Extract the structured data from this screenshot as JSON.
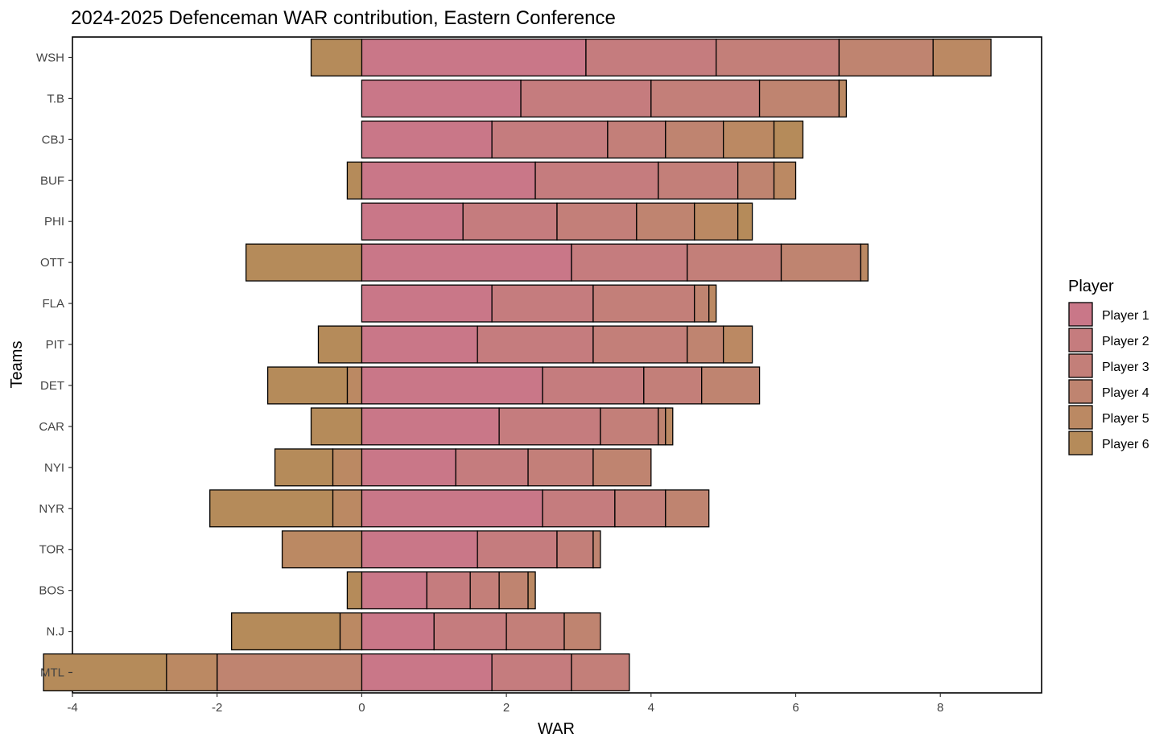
{
  "chart_data": {
    "type": "bar",
    "orientation": "horizontal",
    "stacked": true,
    "title": "2024-2025 Defenceman WAR contribution, Eastern Conference",
    "xlabel": "WAR",
    "ylabel": "Teams",
    "xlim": [
      -4,
      9.4
    ],
    "xticks": [
      -4,
      -2,
      0,
      2,
      4,
      6,
      8
    ],
    "grid": false,
    "legend": {
      "title": "Player",
      "position": "right"
    },
    "categories": [
      "WSH",
      "T.B",
      "CBJ",
      "BUF",
      "PHI",
      "OTT",
      "FLA",
      "PIT",
      "DET",
      "CAR",
      "NYI",
      "NYR",
      "TOR",
      "BOS",
      "N.J",
      "MTL"
    ],
    "series": [
      {
        "name": "Player 1",
        "color": "#c97788",
        "values": [
          3.1,
          2.2,
          1.8,
          2.4,
          1.4,
          2.9,
          1.8,
          1.6,
          2.5,
          1.9,
          1.3,
          2.5,
          1.6,
          0.9,
          1.0,
          1.8
        ]
      },
      {
        "name": "Player 2",
        "color": "#c57c7e",
        "values": [
          1.8,
          1.8,
          1.6,
          1.7,
          1.3,
          1.6,
          1.4,
          1.6,
          1.4,
          1.4,
          1.0,
          1.0,
          1.1,
          0.6,
          1.0,
          1.1
        ]
      },
      {
        "name": "Player 3",
        "color": "#c37f79",
        "values": [
          1.7,
          1.5,
          0.8,
          1.1,
          1.1,
          1.3,
          1.4,
          1.3,
          0.8,
          0.8,
          0.9,
          0.7,
          0.5,
          0.4,
          0.8,
          0.8
        ]
      },
      {
        "name": "Player 4",
        "color": "#bf8470",
        "values": [
          1.3,
          1.1,
          0.8,
          0.5,
          0.8,
          1.1,
          0.2,
          0.5,
          0.8,
          0.1,
          0.8,
          0.6,
          0.1,
          0.4,
          0.5,
          -2.0
        ]
      },
      {
        "name": "Player 5",
        "color": "#bb8963",
        "values": [
          0.8,
          0.1,
          0.7,
          0.3,
          0.6,
          0.1,
          0.1,
          0.4,
          -0.2,
          0.1,
          -0.4,
          -0.4,
          -1.1,
          0.1,
          -0.3,
          -0.7
        ]
      },
      {
        "name": "Player 6",
        "color": "#b58b5a",
        "values": [
          -0.7,
          0.0,
          0.4,
          -0.2,
          0.2,
          -1.6,
          0.0,
          -0.6,
          -1.1,
          -0.7,
          -0.8,
          -1.7,
          0.0,
          -0.2,
          -1.5,
          -1.7
        ]
      }
    ]
  }
}
